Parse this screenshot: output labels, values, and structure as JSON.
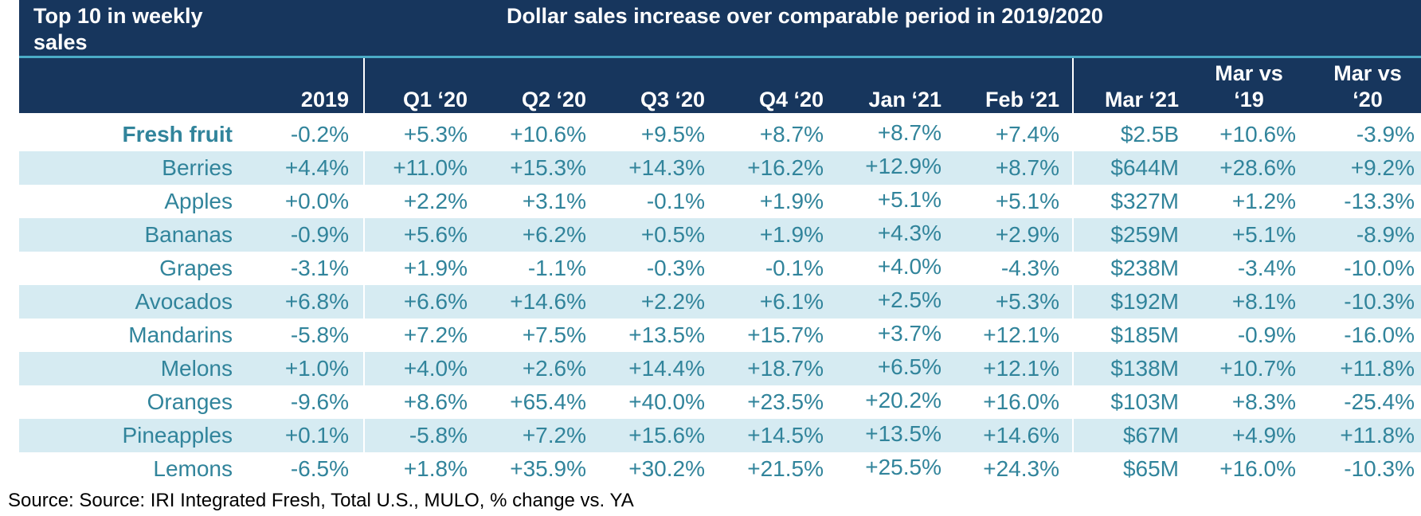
{
  "header": {
    "title": "Top 10 in weekly sales",
    "main": "Dollar sales increase over comparable period in 2019/2020"
  },
  "chart_data": {
    "type": "table",
    "columns": [
      "2019",
      "Q1 ‘20",
      "Q2 ‘20",
      "Q3 ‘20",
      "Q4 ‘20",
      "Jan ‘21",
      "Feb ‘21",
      "Mar ‘21",
      "Mar vs ‘19",
      "Mar vs ‘20"
    ],
    "rows": [
      {
        "label": "Fresh fruit",
        "bold": true,
        "values": [
          "-0.2%",
          "+5.3%",
          "+10.6%",
          "+9.5%",
          "+8.7%",
          "+8.7%",
          "+7.4%",
          "$2.5B",
          "+10.6%",
          "-3.9%"
        ]
      },
      {
        "label": "Berries",
        "bold": false,
        "values": [
          "+4.4%",
          "+11.0%",
          "+15.3%",
          "+14.3%",
          "+16.2%",
          "+12.9%",
          "+8.7%",
          "$644M",
          "+28.6%",
          "+9.2%"
        ]
      },
      {
        "label": "Apples",
        "bold": false,
        "values": [
          "+0.0%",
          "+2.2%",
          "+3.1%",
          "-0.1%",
          "+1.9%",
          "+5.1%",
          "+5.1%",
          "$327M",
          "+1.2%",
          "-13.3%"
        ]
      },
      {
        "label": "Bananas",
        "bold": false,
        "values": [
          "-0.9%",
          "+5.6%",
          "+6.2%",
          "+0.5%",
          "+1.9%",
          "+4.3%",
          "+2.9%",
          "$259M",
          "+5.1%",
          "-8.9%"
        ]
      },
      {
        "label": "Grapes",
        "bold": false,
        "values": [
          "-3.1%",
          "+1.9%",
          "-1.1%",
          "-0.3%",
          "-0.1%",
          "+4.0%",
          "-4.3%",
          "$238M",
          "-3.4%",
          "-10.0%"
        ]
      },
      {
        "label": "Avocados",
        "bold": false,
        "values": [
          "+6.8%",
          "+6.6%",
          "+14.6%",
          "+2.2%",
          "+6.1%",
          "+2.5%",
          "+5.3%",
          "$192M",
          "+8.1%",
          "-10.3%"
        ]
      },
      {
        "label": "Mandarins",
        "bold": false,
        "values": [
          "-5.8%",
          "+7.2%",
          "+7.5%",
          "+13.5%",
          "+15.7%",
          "+3.7%",
          "+12.1%",
          "$185M",
          "-0.9%",
          "-16.0%"
        ]
      },
      {
        "label": "Melons",
        "bold": false,
        "values": [
          "+1.0%",
          "+4.0%",
          "+2.6%",
          "+14.4%",
          "+18.7%",
          "+6.5%",
          "+12.1%",
          "$138M",
          "+10.7%",
          "+11.8%"
        ]
      },
      {
        "label": "Oranges",
        "bold": false,
        "values": [
          "-9.6%",
          "+8.6%",
          "+65.4%",
          "+40.0%",
          "+23.5%",
          "+20.2%",
          "+16.0%",
          "$103M",
          "+8.3%",
          "-25.4%"
        ]
      },
      {
        "label": "Pineapples",
        "bold": false,
        "values": [
          "+0.1%",
          "-5.8%",
          "+7.2%",
          "+15.6%",
          "+14.5%",
          "+13.5%",
          "+14.6%",
          "$67M",
          "+4.9%",
          "+11.8%"
        ]
      },
      {
        "label": "Lemons",
        "bold": false,
        "values": [
          "-6.5%",
          "+1.8%",
          "+35.9%",
          "+30.2%",
          "+21.5%",
          "+25.5%",
          "+24.3%",
          "$65M",
          "+16.0%",
          "-10.3%"
        ]
      }
    ]
  },
  "footer": {
    "source": "Source: Source: IRI Integrated Fresh, Total U.S., MULO, % change vs. YA"
  },
  "colors": {
    "header_bg": "#17365d",
    "header_rule": "#4bacc6",
    "band_bg": "#d6ebf2",
    "text_teal": "#31849b"
  }
}
